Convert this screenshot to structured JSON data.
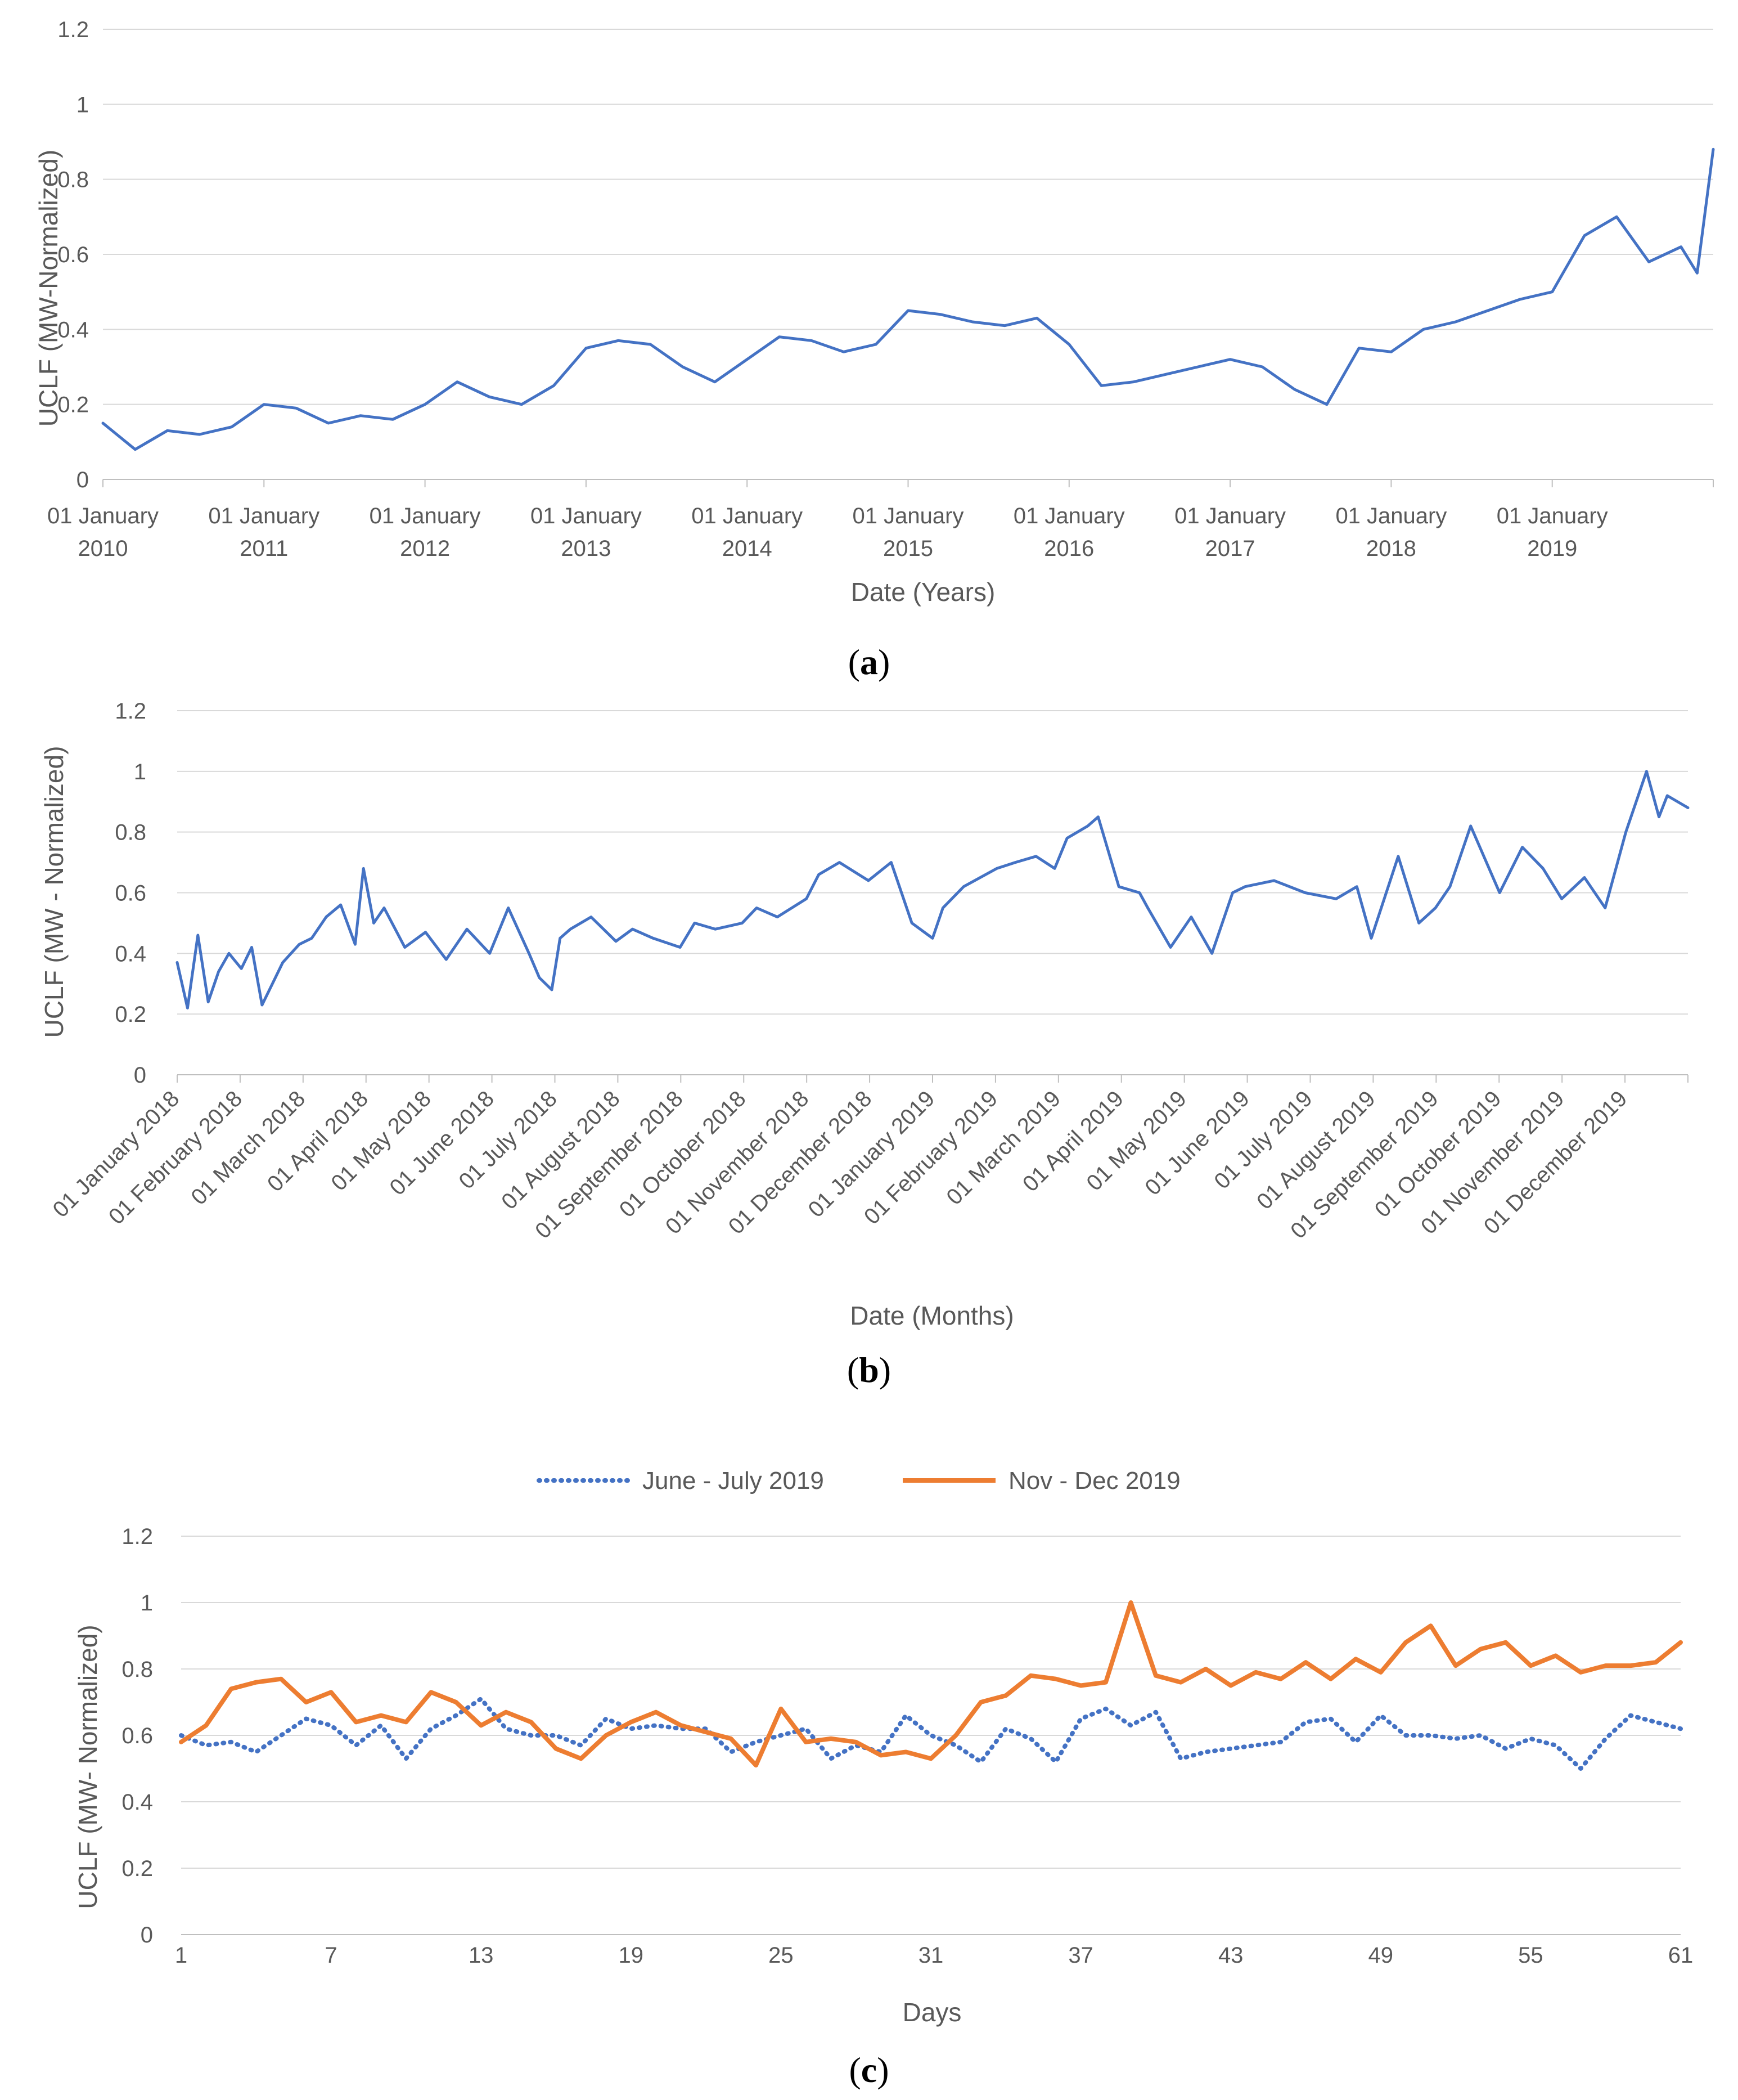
{
  "chart_data": [
    {
      "panel_label": "(a)",
      "panel_letter": "a",
      "type": "line",
      "title": "",
      "xlabel": "Date (Years)",
      "ylabel": "UCLF (MW-Normalized)",
      "ylim": [
        0,
        1.2
      ],
      "yticks": [
        "0",
        "0.2",
        "0.4",
        "0.6",
        "0.8",
        "1",
        "1.2"
      ],
      "xticks": [
        "01 January 2010",
        "01 January 2011",
        "01 January 2012",
        "01 January 2013",
        "01 January 2014",
        "01 January 2015",
        "01 January 2016",
        "01 January 2017",
        "01 January 2018",
        "01 January 2019"
      ],
      "xtick_lines": [
        [
          "01 January",
          "2010"
        ],
        [
          "01 January",
          "2011"
        ],
        [
          "01 January",
          "2012"
        ],
        [
          "01 January",
          "2013"
        ],
        [
          "01 January",
          "2014"
        ],
        [
          "01 January",
          "2015"
        ],
        [
          "01 January",
          "2016"
        ],
        [
          "01 January",
          "2017"
        ],
        [
          "01 January",
          "2018"
        ],
        [
          "01 January",
          "2019"
        ]
      ],
      "x_unit": "years since 01 January 2010",
      "xlim": [
        0,
        10
      ],
      "grid": true,
      "color": "#4472C4",
      "series": [
        {
          "name": "UCLF",
          "x": [
            0,
            0.2,
            0.4,
            0.6,
            0.8,
            1.0,
            1.2,
            1.4,
            1.6,
            1.8,
            2.0,
            2.2,
            2.4,
            2.6,
            2.8,
            3.0,
            3.2,
            3.4,
            3.6,
            3.8,
            4.0,
            4.2,
            4.4,
            4.6,
            4.8,
            5.0,
            5.2,
            5.4,
            5.6,
            5.8,
            6.0,
            6.2,
            6.4,
            6.6,
            6.8,
            7.0,
            7.2,
            7.4,
            7.6,
            7.8,
            8.0,
            8.2,
            8.4,
            8.6,
            8.8,
            9.0,
            9.2,
            9.4,
            9.6,
            9.8,
            9.9,
            10.0
          ],
          "values": [
            0.15,
            0.08,
            0.13,
            0.12,
            0.14,
            0.2,
            0.19,
            0.15,
            0.17,
            0.16,
            0.2,
            0.26,
            0.22,
            0.2,
            0.25,
            0.35,
            0.37,
            0.36,
            0.3,
            0.26,
            0.32,
            0.38,
            0.37,
            0.34,
            0.36,
            0.45,
            0.44,
            0.42,
            0.41,
            0.43,
            0.36,
            0.25,
            0.26,
            0.28,
            0.3,
            0.32,
            0.3,
            0.24,
            0.2,
            0.35,
            0.34,
            0.4,
            0.42,
            0.45,
            0.48,
            0.5,
            0.65,
            0.7,
            0.58,
            0.62,
            0.55,
            0.88
          ]
        }
      ]
    },
    {
      "panel_label": "(b)",
      "panel_letter": "b",
      "type": "line",
      "title": "",
      "xlabel": "Date (Months)",
      "ylabel": "UCLF (MW - Normalized)",
      "ylim": [
        0,
        1.2
      ],
      "yticks": [
        "0",
        "0.2",
        "0.4",
        "0.6",
        "0.8",
        "1",
        "1.2"
      ],
      "xticks": [
        "01 January 2018",
        "01 February 2018",
        "01 March 2018",
        "01 April 2018",
        "01 May 2018",
        "01 June 2018",
        "01 July 2018",
        "01 August 2018",
        "01 September 2018",
        "01 October 2018",
        "01 November 2018",
        "01 December 2018",
        "01 January 2019",
        "01 February 2019",
        "01 March 2019",
        "01 April 2019",
        "01 May 2019",
        "01 June 2019",
        "01 July 2019",
        "01 August 2019",
        "01 September 2019",
        "01 October 2019",
        "01 November 2019",
        "01 December 2019"
      ],
      "x_unit": "days since 01 January 2018",
      "xlim": [
        0,
        730
      ],
      "grid": true,
      "color": "#4472C4",
      "series": [
        {
          "name": "UCLF",
          "x": [
            0,
            5,
            10,
            15,
            20,
            25,
            31,
            36,
            41,
            46,
            51,
            59,
            65,
            72,
            79,
            86,
            90,
            95,
            100,
            110,
            120,
            130,
            140,
            151,
            160,
            170,
            175,
            181,
            185,
            190,
            200,
            212,
            220,
            230,
            243,
            250,
            260,
            273,
            280,
            290,
            304,
            310,
            320,
            334,
            345,
            355,
            365,
            370,
            380,
            396,
            405,
            415,
            424,
            430,
            440,
            445,
            455,
            465,
            469,
            480,
            490,
            500,
            510,
            516,
            530,
            545,
            560,
            570,
            577,
            590,
            600,
            608,
            615,
            625,
            639,
            650,
            660,
            669,
            680,
            690,
            700,
            710,
            716,
            720,
            730
          ],
          "values": [
            0.37,
            0.22,
            0.46,
            0.24,
            0.34,
            0.4,
            0.35,
            0.42,
            0.23,
            0.3,
            0.37,
            0.43,
            0.45,
            0.52,
            0.56,
            0.43,
            0.68,
            0.5,
            0.55,
            0.42,
            0.47,
            0.38,
            0.48,
            0.4,
            0.55,
            0.4,
            0.32,
            0.28,
            0.45,
            0.48,
            0.52,
            0.44,
            0.48,
            0.45,
            0.42,
            0.5,
            0.48,
            0.5,
            0.55,
            0.52,
            0.58,
            0.66,
            0.7,
            0.64,
            0.7,
            0.5,
            0.45,
            0.55,
            0.62,
            0.68,
            0.7,
            0.72,
            0.68,
            0.78,
            0.82,
            0.85,
            0.62,
            0.6,
            0.55,
            0.42,
            0.52,
            0.4,
            0.6,
            0.62,
            0.64,
            0.6,
            0.58,
            0.62,
            0.45,
            0.72,
            0.5,
            0.55,
            0.62,
            0.82,
            0.6,
            0.75,
            0.68,
            0.58,
            0.65,
            0.55,
            0.8,
            1.0,
            0.85,
            0.92,
            0.88
          ]
        }
      ]
    },
    {
      "panel_label": "(c)",
      "panel_letter": "c",
      "type": "line",
      "title": "",
      "xlabel": "Days",
      "ylabel": "UCLF (MW- Normalized)",
      "ylim": [
        0,
        1.2
      ],
      "yticks": [
        "0",
        "0.2",
        "0.4",
        "0.6",
        "0.8",
        "1",
        "1.2"
      ],
      "xticks": [
        "1",
        "7",
        "13",
        "19",
        "25",
        "31",
        "37",
        "43",
        "49",
        "55",
        "61"
      ],
      "xlim": [
        1,
        61
      ],
      "grid": true,
      "legend": "top",
      "categories": [
        1,
        2,
        3,
        4,
        5,
        6,
        7,
        8,
        9,
        10,
        11,
        12,
        13,
        14,
        15,
        16,
        17,
        18,
        19,
        20,
        21,
        22,
        23,
        24,
        25,
        26,
        27,
        28,
        29,
        30,
        31,
        32,
        33,
        34,
        35,
        36,
        37,
        38,
        39,
        40,
        41,
        42,
        43,
        44,
        45,
        46,
        47,
        48,
        49,
        50,
        51,
        52,
        53,
        54,
        55,
        56,
        57,
        58,
        59,
        60,
        61
      ],
      "series": [
        {
          "name": "June - July 2019",
          "style": "dotted",
          "color": "#4472C4",
          "values": [
            0.6,
            0.57,
            0.58,
            0.55,
            0.6,
            0.65,
            0.63,
            0.57,
            0.63,
            0.53,
            0.62,
            0.66,
            0.71,
            0.62,
            0.6,
            0.6,
            0.57,
            0.65,
            0.62,
            0.63,
            0.62,
            0.62,
            0.55,
            0.58,
            0.6,
            0.62,
            0.53,
            0.57,
            0.55,
            0.66,
            0.6,
            0.57,
            0.52,
            0.62,
            0.59,
            0.52,
            0.65,
            0.68,
            0.63,
            0.67,
            0.53,
            0.55,
            0.56,
            0.57,
            0.58,
            0.64,
            0.65,
            0.58,
            0.66,
            0.6,
            0.6,
            0.59,
            0.6,
            0.56,
            0.59,
            0.57,
            0.5,
            0.59,
            0.66,
            0.64,
            0.62
          ]
        },
        {
          "name": "Nov - Dec 2019",
          "style": "solid",
          "color": "#ED7D31",
          "values": [
            0.58,
            0.63,
            0.74,
            0.76,
            0.77,
            0.7,
            0.73,
            0.64,
            0.66,
            0.64,
            0.73,
            0.7,
            0.63,
            0.67,
            0.64,
            0.56,
            0.53,
            0.6,
            0.64,
            0.67,
            0.63,
            0.61,
            0.59,
            0.51,
            0.68,
            0.58,
            0.59,
            0.58,
            0.54,
            0.55,
            0.53,
            0.6,
            0.7,
            0.72,
            0.78,
            0.77,
            0.75,
            0.76,
            1.0,
            0.78,
            0.76,
            0.8,
            0.75,
            0.79,
            0.77,
            0.82,
            0.77,
            0.83,
            0.79,
            0.88,
            0.93,
            0.81,
            0.86,
            0.88,
            0.81,
            0.84,
            0.79,
            0.81,
            0.81,
            0.82,
            0.88
          ]
        }
      ]
    }
  ]
}
